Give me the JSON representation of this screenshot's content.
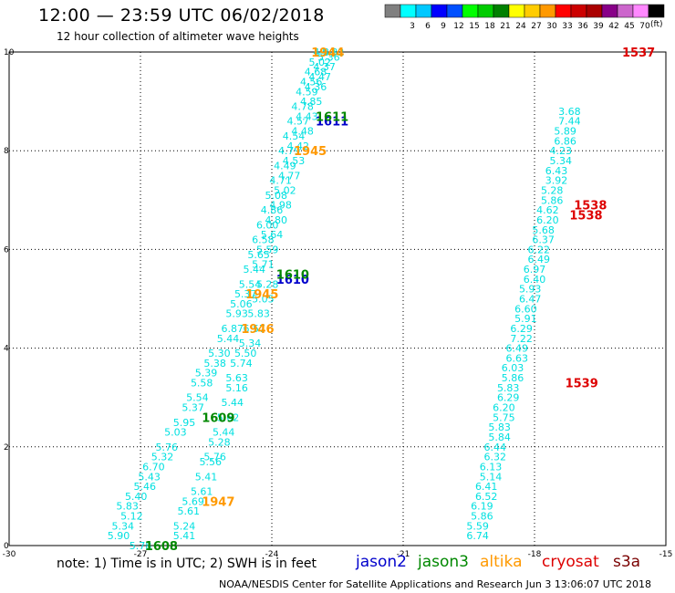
{
  "title": "12:00 — 23:59 UTC 06/02/2018",
  "subtitle": "12 hour collection of altimeter wave heights",
  "note": "note: 1) Time is in UTC; 2) SWH is in feet",
  "credit": "NOAA/NESDIS Center for Satellite Applications and Research    Jun  3 13:06:07 UTC 2018",
  "units": "(ft)",
  "legend_satellites": [
    {
      "name": "jason2",
      "color": "#0000cc"
    },
    {
      "name": "jason3",
      "color": "#008800"
    },
    {
      "name": "altika",
      "color": "#ff9900"
    },
    {
      "name": "cryosat",
      "color": "#dd0000"
    },
    {
      "name": "s3a",
      "color": "#7a0000"
    }
  ],
  "colorbar": [
    {
      "label": "",
      "color": "#808080"
    },
    {
      "label": "3",
      "color": "#00ffff"
    },
    {
      "label": "6",
      "color": "#00c8ff"
    },
    {
      "label": "9",
      "color": "#0000ff"
    },
    {
      "label": "12",
      "color": "#0050ff"
    },
    {
      "label": "15",
      "color": "#00ff00"
    },
    {
      "label": "18",
      "color": "#00cc00"
    },
    {
      "label": "21",
      "color": "#008000"
    },
    {
      "label": "24",
      "color": "#ffff00"
    },
    {
      "label": "27",
      "color": "#ffcc00"
    },
    {
      "label": "30",
      "color": "#ff9900"
    },
    {
      "label": "33",
      "color": "#ff0000"
    },
    {
      "label": "36",
      "color": "#cc0000"
    },
    {
      "label": "39",
      "color": "#aa0000"
    },
    {
      "label": "42",
      "color": "#880088"
    },
    {
      "label": "45",
      "color": "#cc66cc"
    },
    {
      "label": "70",
      "color": "#ff88ff"
    },
    {
      "label": "",
      "color": "#000000"
    }
  ],
  "chart_data": {
    "type": "scatter",
    "xlim": [
      -30,
      -15
    ],
    "ylim": [
      0,
      10
    ],
    "x_ticks": [
      -30,
      -27,
      -24,
      -21,
      -18,
      -15
    ],
    "x_tick_labels": [
      "-30",
      "-27",
      "-24",
      "-21",
      "-18",
      "-15"
    ],
    "y_ticks": [
      0,
      2,
      4,
      6,
      8,
      10
    ],
    "grid": true,
    "tracks": [
      {
        "name": "west track",
        "color": "#00e0e0",
        "points": [
          {
            "x": -27.0,
            "y": 0.0,
            "v": "5.78"
          },
          {
            "x": -27.5,
            "y": 0.2,
            "v": "5.90"
          },
          {
            "x": -26.0,
            "y": 0.2,
            "v": "5.41"
          },
          {
            "x": -27.4,
            "y": 0.4,
            "v": "5.34"
          },
          {
            "x": -26.0,
            "y": 0.4,
            "v": "5.24"
          },
          {
            "x": -27.2,
            "y": 0.6,
            "v": "5.12"
          },
          {
            "x": -25.9,
            "y": 0.7,
            "v": "5.61"
          },
          {
            "x": -27.3,
            "y": 0.8,
            "v": "5.83"
          },
          {
            "x": -25.8,
            "y": 0.9,
            "v": "5.69"
          },
          {
            "x": -27.1,
            "y": 1.0,
            "v": "5.40"
          },
          {
            "x": -26.9,
            "y": 1.2,
            "v": "5.46"
          },
          {
            "x": -25.6,
            "y": 1.1,
            "v": "5.61"
          },
          {
            "x": -26.8,
            "y": 1.4,
            "v": "5.43"
          },
          {
            "x": -25.5,
            "y": 1.4,
            "v": "5.41"
          },
          {
            "x": -26.7,
            "y": 1.6,
            "v": "6.70"
          },
          {
            "x": -25.4,
            "y": 1.7,
            "v": "5.56"
          },
          {
            "x": -26.5,
            "y": 1.8,
            "v": "5.32"
          },
          {
            "x": -25.3,
            "y": 1.8,
            "v": "5.76"
          },
          {
            "x": -26.4,
            "y": 2.0,
            "v": "5.76"
          },
          {
            "x": -25.2,
            "y": 2.1,
            "v": "5.28"
          },
          {
            "x": -26.2,
            "y": 2.3,
            "v": "5.03"
          },
          {
            "x": -25.1,
            "y": 2.3,
            "v": "5.44"
          },
          {
            "x": -26.0,
            "y": 2.5,
            "v": "5.95"
          },
          {
            "x": -25.0,
            "y": 2.6,
            "v": "5.62"
          },
          {
            "x": -25.8,
            "y": 2.8,
            "v": "5.37"
          },
          {
            "x": -24.9,
            "y": 2.9,
            "v": "5.44"
          },
          {
            "x": -25.7,
            "y": 3.0,
            "v": "5.54"
          },
          {
            "x": -24.8,
            "y": 3.2,
            "v": "5.16"
          },
          {
            "x": -25.6,
            "y": 3.3,
            "v": "5.58"
          },
          {
            "x": -24.8,
            "y": 3.4,
            "v": "5.63"
          },
          {
            "x": -25.5,
            "y": 3.5,
            "v": "5.39"
          },
          {
            "x": -24.7,
            "y": 3.7,
            "v": "5.74"
          },
          {
            "x": -25.3,
            "y": 3.7,
            "v": "5.38"
          },
          {
            "x": -24.6,
            "y": 3.9,
            "v": "5.50"
          },
          {
            "x": -25.2,
            "y": 3.9,
            "v": "5.30"
          },
          {
            "x": -24.5,
            "y": 4.1,
            "v": "5.34"
          },
          {
            "x": -25.0,
            "y": 4.2,
            "v": "5.44"
          },
          {
            "x": -24.4,
            "y": 4.4,
            "v": "6.57"
          },
          {
            "x": -24.9,
            "y": 4.4,
            "v": "6.87"
          },
          {
            "x": -24.8,
            "y": 4.7,
            "v": "5.93"
          },
          {
            "x": -24.3,
            "y": 4.7,
            "v": "5.83"
          },
          {
            "x": -24.7,
            "y": 4.9,
            "v": "5.06"
          },
          {
            "x": -24.2,
            "y": 5.0,
            "v": "5.05"
          },
          {
            "x": -24.6,
            "y": 5.1,
            "v": "5.37"
          },
          {
            "x": -24.1,
            "y": 5.3,
            "v": "5.28"
          },
          {
            "x": -24.5,
            "y": 5.3,
            "v": "5.54"
          },
          {
            "x": -24.4,
            "y": 5.6,
            "v": "5.44"
          },
          {
            "x": -24.2,
            "y": 5.7,
            "v": "5.71"
          },
          {
            "x": -24.3,
            "y": 5.9,
            "v": "5.65"
          },
          {
            "x": -24.1,
            "y": 6.0,
            "v": "5.59"
          },
          {
            "x": -24.2,
            "y": 6.2,
            "v": "6.58"
          },
          {
            "x": -24.0,
            "y": 6.3,
            "v": "5.64"
          },
          {
            "x": -24.1,
            "y": 6.5,
            "v": "6.00"
          },
          {
            "x": -23.9,
            "y": 6.6,
            "v": "4.80"
          },
          {
            "x": -24.0,
            "y": 6.8,
            "v": "4.86"
          },
          {
            "x": -23.8,
            "y": 6.9,
            "v": "4.98"
          },
          {
            "x": -23.9,
            "y": 7.1,
            "v": "5.08"
          },
          {
            "x": -23.7,
            "y": 7.2,
            "v": "5.02"
          },
          {
            "x": -23.8,
            "y": 7.4,
            "v": "4.71"
          },
          {
            "x": -23.6,
            "y": 7.5,
            "v": "4.77"
          },
          {
            "x": -23.7,
            "y": 7.7,
            "v": "4.49"
          },
          {
            "x": -23.5,
            "y": 7.8,
            "v": "4.53"
          },
          {
            "x": -23.6,
            "y": 8.0,
            "v": "4.79"
          },
          {
            "x": -23.4,
            "y": 8.1,
            "v": "4.42"
          },
          {
            "x": -23.5,
            "y": 8.3,
            "v": "4.54"
          },
          {
            "x": -23.3,
            "y": 8.4,
            "v": "4.48"
          },
          {
            "x": -23.4,
            "y": 8.6,
            "v": "4.57"
          },
          {
            "x": -23.2,
            "y": 8.7,
            "v": "4.43"
          },
          {
            "x": -23.3,
            "y": 8.9,
            "v": "4.78"
          },
          {
            "x": -23.1,
            "y": 9.0,
            "v": "4.85"
          },
          {
            "x": -23.2,
            "y": 9.2,
            "v": "4.59"
          },
          {
            "x": -23.0,
            "y": 9.3,
            "v": "4.36"
          },
          {
            "x": -23.1,
            "y": 9.4,
            "v": "4.56"
          },
          {
            "x": -22.9,
            "y": 9.5,
            "v": "4.47"
          },
          {
            "x": -23.0,
            "y": 9.6,
            "v": "4.68"
          },
          {
            "x": -22.8,
            "y": 9.7,
            "v": "4.37"
          },
          {
            "x": -22.9,
            "y": 9.8,
            "v": "5.02"
          },
          {
            "x": -22.7,
            "y": 9.9,
            "v": "5.36"
          },
          {
            "x": -22.8,
            "y": 10.0,
            "v": "4.80"
          },
          {
            "x": -22.6,
            "y": 10.0,
            "v": "5.32"
          }
        ]
      },
      {
        "name": "east track",
        "color": "#00e0e0",
        "points": [
          {
            "x": -19.3,
            "y": 0.2,
            "v": "6.74"
          },
          {
            "x": -19.3,
            "y": 0.4,
            "v": "5.59"
          },
          {
            "x": -19.2,
            "y": 0.6,
            "v": "5.86"
          },
          {
            "x": -19.2,
            "y": 0.8,
            "v": "6.19"
          },
          {
            "x": -19.1,
            "y": 1.0,
            "v": "6.52"
          },
          {
            "x": -19.1,
            "y": 1.2,
            "v": "6.41"
          },
          {
            "x": -19.0,
            "y": 1.4,
            "v": "5.14"
          },
          {
            "x": -19.0,
            "y": 1.6,
            "v": "6.13"
          },
          {
            "x": -18.9,
            "y": 1.8,
            "v": "6.32"
          },
          {
            "x": -18.9,
            "y": 2.0,
            "v": "6.44"
          },
          {
            "x": -18.8,
            "y": 2.2,
            "v": "5.84"
          },
          {
            "x": -18.8,
            "y": 2.4,
            "v": "5.83"
          },
          {
            "x": -18.7,
            "y": 2.6,
            "v": "5.75"
          },
          {
            "x": -18.7,
            "y": 2.8,
            "v": "6.20"
          },
          {
            "x": -18.6,
            "y": 3.0,
            "v": "6.29"
          },
          {
            "x": -18.6,
            "y": 3.2,
            "v": "5.83"
          },
          {
            "x": -18.5,
            "y": 3.4,
            "v": "5.86"
          },
          {
            "x": -18.5,
            "y": 3.6,
            "v": "6.03"
          },
          {
            "x": -18.4,
            "y": 3.8,
            "v": "6.63"
          },
          {
            "x": -18.4,
            "y": 4.0,
            "v": "6.49"
          },
          {
            "x": -18.3,
            "y": 4.2,
            "v": "7.22"
          },
          {
            "x": -18.3,
            "y": 4.4,
            "v": "6.29"
          },
          {
            "x": -18.2,
            "y": 4.6,
            "v": "5.91"
          },
          {
            "x": -18.2,
            "y": 4.8,
            "v": "6.60"
          },
          {
            "x": -18.1,
            "y": 5.0,
            "v": "6.47"
          },
          {
            "x": -18.1,
            "y": 5.2,
            "v": "5.93"
          },
          {
            "x": -18.0,
            "y": 5.4,
            "v": "6.40"
          },
          {
            "x": -18.0,
            "y": 5.6,
            "v": "6.97"
          },
          {
            "x": -17.9,
            "y": 5.8,
            "v": "6.49"
          },
          {
            "x": -17.9,
            "y": 6.0,
            "v": "6.22"
          },
          {
            "x": -17.8,
            "y": 6.2,
            "v": "6.37"
          },
          {
            "x": -17.8,
            "y": 6.4,
            "v": "5.68"
          },
          {
            "x": -17.7,
            "y": 6.6,
            "v": "6.20"
          },
          {
            "x": -17.7,
            "y": 6.8,
            "v": "4.62"
          },
          {
            "x": -17.6,
            "y": 7.0,
            "v": "5.86"
          },
          {
            "x": -17.6,
            "y": 7.2,
            "v": "5.28"
          },
          {
            "x": -17.5,
            "y": 7.4,
            "v": "3.92"
          },
          {
            "x": -17.5,
            "y": 7.6,
            "v": "6.43"
          },
          {
            "x": -17.4,
            "y": 7.8,
            "v": "5.34"
          },
          {
            "x": -17.4,
            "y": 8.0,
            "v": "4.23"
          },
          {
            "x": -17.3,
            "y": 8.2,
            "v": "6.86"
          },
          {
            "x": -17.3,
            "y": 8.4,
            "v": "5.89"
          },
          {
            "x": -17.2,
            "y": 8.6,
            "v": "7.44"
          },
          {
            "x": -17.2,
            "y": 8.8,
            "v": "3.68"
          }
        ]
      }
    ],
    "time_labels": [
      {
        "x": -26.9,
        "y": 0.0,
        "text": "1608",
        "sat": "jason3"
      },
      {
        "x": -25.6,
        "y": 0.9,
        "text": "1947",
        "sat": "altika"
      },
      {
        "x": -25.6,
        "y": 2.6,
        "text": "1609",
        "sat": "jason3"
      },
      {
        "x": -24.7,
        "y": 4.4,
        "text": "1946",
        "sat": "altika"
      },
      {
        "x": -23.9,
        "y": 5.4,
        "text": "1610",
        "sat": "jason2"
      },
      {
        "x": -23.9,
        "y": 5.5,
        "text": "1610",
        "sat": "jason3"
      },
      {
        "x": -24.6,
        "y": 5.1,
        "text": "1945",
        "sat": "altika"
      },
      {
        "x": -23.5,
        "y": 8.0,
        "text": "1945",
        "sat": "altika"
      },
      {
        "x": -23.0,
        "y": 8.6,
        "text": "1611",
        "sat": "jason2"
      },
      {
        "x": -23.0,
        "y": 8.7,
        "text": "1611",
        "sat": "jason3"
      },
      {
        "x": -23.1,
        "y": 10.0,
        "text": "1944",
        "sat": "altika"
      },
      {
        "x": -16.0,
        "y": 10.0,
        "text": "1537",
        "sat": "cryosat"
      },
      {
        "x": -17.1,
        "y": 6.9,
        "text": "1538",
        "sat": "cryosat"
      },
      {
        "x": -17.2,
        "y": 6.7,
        "text": "1538",
        "sat": "cryosat"
      },
      {
        "x": -17.3,
        "y": 3.3,
        "text": "1539",
        "sat": "cryosat"
      }
    ]
  }
}
